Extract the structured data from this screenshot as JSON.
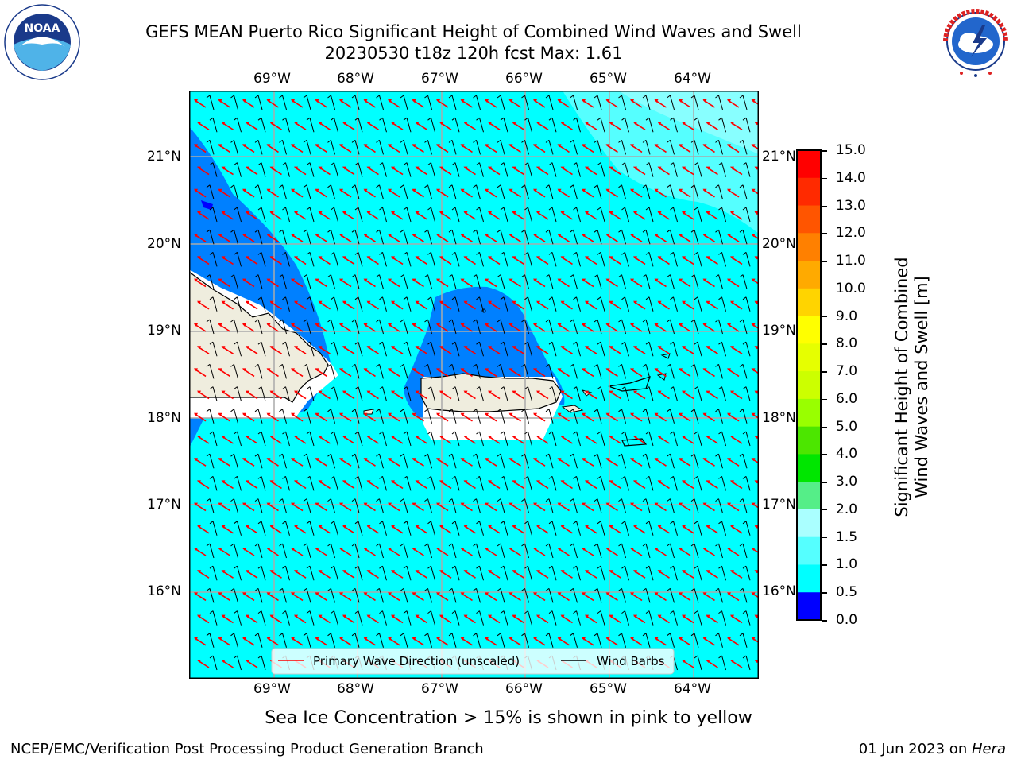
{
  "title": {
    "line1": "GEFS MEAN Puerto Rico Significant Height of Combined Wind Waves and Swell",
    "line2": "20230530 t18z 120h fcst   Max: 1.61"
  },
  "logos": {
    "left": {
      "icon": "noaa-logo",
      "text": "NOAA",
      "ring_text": "NATIONAL OCEANIC AND ATMOSPHERIC ADMINISTRATION · U.S. DEPARTMENT OF COMMERCE"
    },
    "right": {
      "icon": "nws-logo",
      "ring_text": "NATIONAL WEATHER SERVICE"
    }
  },
  "map": {
    "lon_labels": [
      "69°W",
      "68°W",
      "67°W",
      "66°W",
      "65°W",
      "64°W"
    ],
    "lat_labels": [
      "21°N",
      "20°N",
      "19°N",
      "18°N",
      "17°N",
      "16°N"
    ],
    "legend": {
      "wave_direction": "Primary Wave Direction (unscaled)",
      "wind_barbs": "Wind Barbs"
    },
    "colors": {
      "ocean": "#00ffff",
      "shallow": "#0080ff",
      "land": "#efedde",
      "wave_arrow": "#ff0000",
      "barb": "#000000",
      "grid": "#aaaaaa"
    }
  },
  "colorbar": {
    "label_line1": "Significant Height of Combined",
    "label_line2": "Wind Waves and Swell [m]",
    "ticks": [
      "15.0",
      "14.0",
      "13.0",
      "12.0",
      "11.0",
      "10.0",
      "9.0",
      "8.0",
      "7.0",
      "6.0",
      "5.0",
      "4.0",
      "3.0",
      "2.0",
      "1.5",
      "1.0",
      "0.5",
      "0.0"
    ],
    "colors": [
      "#ff0000",
      "#ff2a00",
      "#ff5500",
      "#ff8000",
      "#ffaa00",
      "#ffd400",
      "#ffff00",
      "#e6ff00",
      "#ccff00",
      "#99ff00",
      "#4ce600",
      "#00e600",
      "#55ee88",
      "#aaffff",
      "#55ffff",
      "#00ffff",
      "#0080ff",
      "#0000ff"
    ]
  },
  "notes": {
    "sea_ice": "Sea Ice Concentration > 15% is shown in pink to yellow"
  },
  "footer": {
    "left": "NCEP/EMC/Verification Post Processing Product Generation Branch",
    "right_prefix": "01 Jun 2023 on ",
    "right_host": "Hera"
  }
}
